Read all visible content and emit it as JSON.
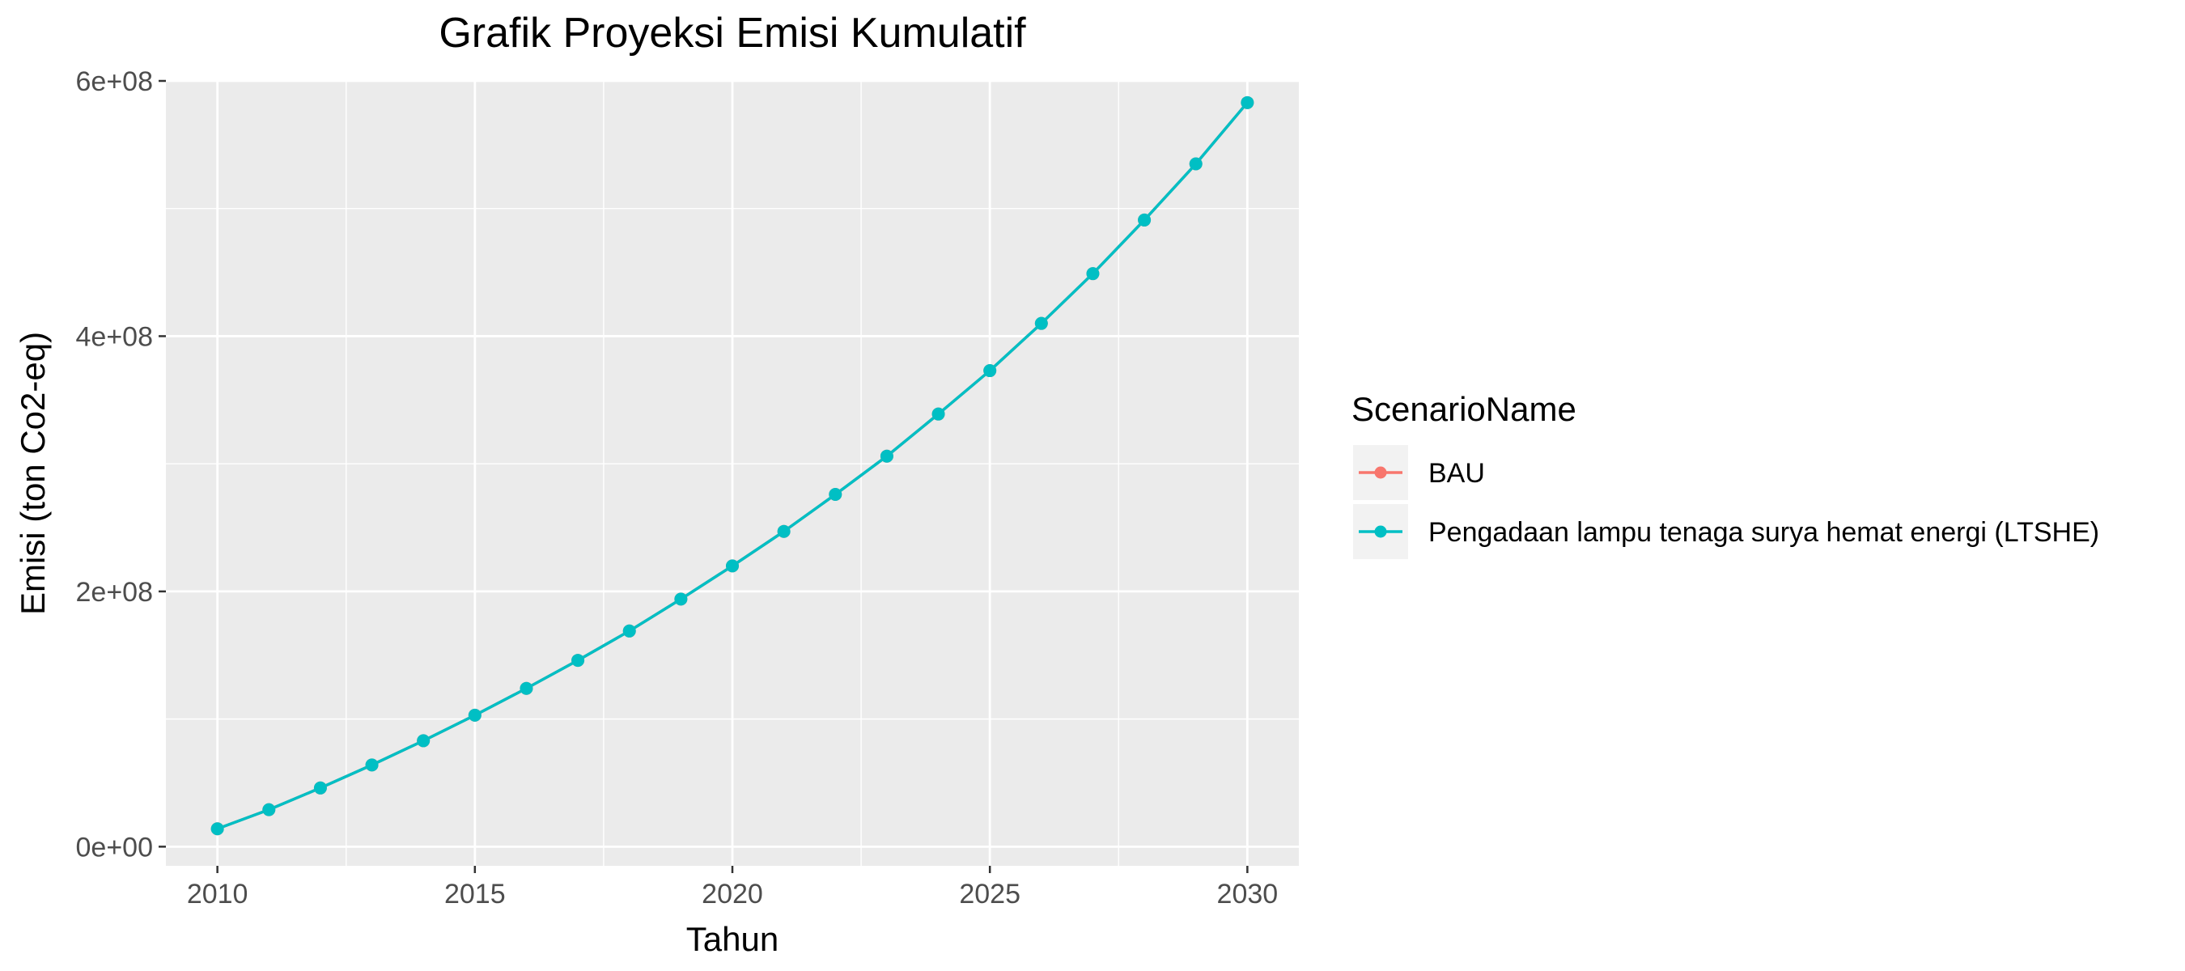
{
  "chart_data": {
    "type": "line",
    "title": "Grafik Proyeksi Emisi Kumulatif",
    "xlabel": "Tahun",
    "ylabel": "Emisi (ton Co2-eq)",
    "xlim": [
      2009,
      2031
    ],
    "ylim": [
      -15000000,
      600000000
    ],
    "x_ticks": [
      2010,
      2015,
      2020,
      2025,
      2030
    ],
    "x_tick_labels": [
      "2010",
      "2015",
      "2020",
      "2025",
      "2030"
    ],
    "y_ticks": [
      0,
      200000000,
      400000000,
      600000000
    ],
    "y_tick_labels": [
      "0e+00",
      "2e+08",
      "4e+08",
      "6e+08"
    ],
    "grid": true,
    "legend": {
      "title": "ScenarioName",
      "placement": "right"
    },
    "x": [
      2010,
      2011,
      2012,
      2013,
      2014,
      2015,
      2016,
      2017,
      2018,
      2019,
      2020,
      2021,
      2022,
      2023,
      2024,
      2025,
      2026,
      2027,
      2028,
      2029,
      2030
    ],
    "series": [
      {
        "name": "BAU",
        "color": "#F8766D",
        "values": [
          14000000,
          29000000,
          46000000,
          64000000,
          83000000,
          103000000,
          124000000,
          146000000,
          169000000,
          194000000,
          220000000,
          247000000,
          276000000,
          306000000,
          339000000,
          373000000,
          410000000,
          449000000,
          491000000,
          535000000,
          583000000
        ]
      },
      {
        "name": "Pengadaan lampu tenaga surya hemat energi (LTSHE)",
        "color": "#00BFC4",
        "values": [
          14000000,
          29000000,
          46000000,
          64000000,
          83000000,
          103000000,
          124000000,
          146000000,
          169000000,
          194000000,
          220000000,
          247000000,
          276000000,
          306000000,
          339000000,
          373000000,
          410000000,
          449000000,
          491000000,
          535000000,
          583000000
        ]
      }
    ]
  }
}
